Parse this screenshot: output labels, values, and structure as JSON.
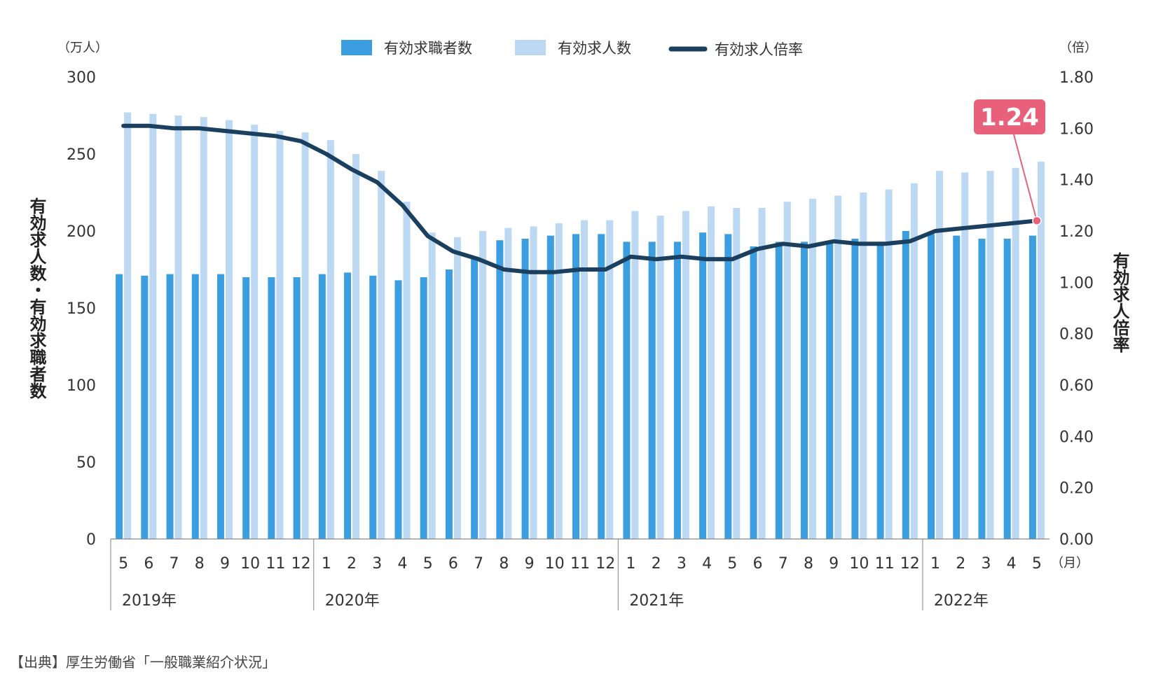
{
  "chart_data": {
    "type": "bar",
    "legend": [
      "有効求職者数",
      "有効求人数",
      "有効求人倍率"
    ],
    "left_unit": "（万人）",
    "right_unit": "（倍）",
    "left_ylabel": "有効求人数・有効求職者数",
    "right_ylabel": "有効求人倍率",
    "x_unit": "（月）",
    "left_ylim": [
      0,
      300
    ],
    "left_ticks": [
      "0",
      "50",
      "100",
      "150",
      "200",
      "250",
      "300"
    ],
    "right_ylim": [
      0,
      1.8
    ],
    "right_ticks": [
      "0.00",
      "0.20",
      "0.40",
      "0.60",
      "0.80",
      "1.00",
      "1.20",
      "1.40",
      "1.60",
      "1.80"
    ],
    "categories": [
      "5",
      "6",
      "7",
      "8",
      "9",
      "10",
      "11",
      "12",
      "1",
      "2",
      "3",
      "4",
      "5",
      "6",
      "7",
      "8",
      "9",
      "10",
      "11",
      "12",
      "1",
      "2",
      "3",
      "4",
      "5",
      "6",
      "7",
      "8",
      "9",
      "10",
      "11",
      "12",
      "1",
      "2",
      "3",
      "4",
      "5"
    ],
    "years": [
      {
        "label": "2019年",
        "start": 0
      },
      {
        "label": "2020年",
        "start": 8
      },
      {
        "label": "2021年",
        "start": 20
      },
      {
        "label": "2022年",
        "start": 32
      }
    ],
    "series": [
      {
        "name": "有効求職者数",
        "type": "bar",
        "color": "#3a9ee0",
        "values": [
          172,
          171,
          172,
          172,
          172,
          170,
          170,
          170,
          172,
          173,
          171,
          168,
          170,
          175,
          183,
          194,
          195,
          197,
          198,
          198,
          193,
          193,
          193,
          199,
          198,
          190,
          193,
          193,
          193,
          195,
          193,
          200,
          198,
          197,
          195,
          195,
          197
        ]
      },
      {
        "name": "有効求人数",
        "type": "bar",
        "color": "#bcd8f2",
        "values": [
          277,
          276,
          275,
          274,
          272,
          269,
          265,
          264,
          259,
          250,
          239,
          219,
          199,
          196,
          200,
          202,
          203,
          205,
          207,
          207,
          213,
          210,
          213,
          216,
          215,
          215,
          219,
          221,
          223,
          225,
          227,
          231,
          239,
          238,
          239,
          241,
          245
        ]
      },
      {
        "name": "有効求人倍率",
        "type": "line",
        "color": "#1b3f5e",
        "values": [
          1.61,
          1.61,
          1.6,
          1.6,
          1.59,
          1.58,
          1.57,
          1.55,
          1.5,
          1.44,
          1.39,
          1.3,
          1.18,
          1.12,
          1.09,
          1.05,
          1.04,
          1.04,
          1.05,
          1.05,
          1.1,
          1.09,
          1.1,
          1.09,
          1.09,
          1.13,
          1.15,
          1.14,
          1.16,
          1.15,
          1.15,
          1.16,
          1.2,
          1.21,
          1.22,
          1.23,
          1.24
        ]
      }
    ],
    "callout": {
      "text": "1.24",
      "color": "#e8607a"
    }
  },
  "source": "【出典】厚生労働省「一般職業紹介状況」"
}
